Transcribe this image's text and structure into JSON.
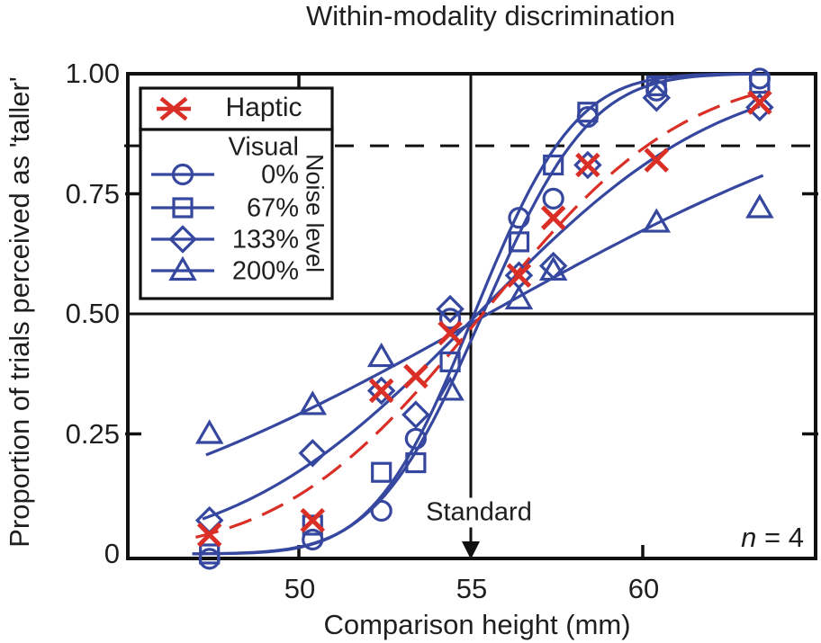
{
  "figure": {
    "standard_label": "Standard",
    "n_annotation": {
      "var": "n",
      "rest": " = 4"
    }
  },
  "colors": {
    "blue": "#35479e",
    "red": "#d92f27",
    "axis_black": "#111111",
    "text": "#1f1f1f"
  },
  "legend": {
    "haptic": {
      "label": "Haptic",
      "marker": "asterisk",
      "color": "#d92f27"
    },
    "visual": {
      "title": "Visual",
      "axis_label": "Noise level",
      "series": [
        {
          "label": "0%",
          "marker": "circle"
        },
        {
          "label": "67%",
          "marker": "square"
        },
        {
          "label": "133%",
          "marker": "diamond"
        },
        {
          "label": "200%",
          "marker": "triangle"
        }
      ]
    }
  },
  "chart_data": {
    "type": "scatter",
    "title": "Within-modality discrimination",
    "xlabel": "Comparison height (mm)",
    "ylabel": "Proportion of trials perceived as 'taller'",
    "xlim": [
      45.1,
      65.0
    ],
    "ylim": [
      0,
      1.0
    ],
    "grid": false,
    "x_ticks": [
      {
        "value": 50,
        "label": "50"
      },
      {
        "value": 55,
        "label": "55"
      },
      {
        "value": 60,
        "label": "60"
      }
    ],
    "y_ticks": [
      {
        "value": 1.0,
        "label": "1.00"
      },
      {
        "value": 0.75,
        "label": "0.75"
      },
      {
        "value": 0.5,
        "label": "0.50"
      },
      {
        "value": 0.25,
        "label": "0.25"
      },
      {
        "value": 0,
        "label": "0"
      }
    ],
    "reference_lines": {
      "horizontal_solid_y": 0.5,
      "horizontal_dashed_y": 0.85,
      "vertical_arrow_x": 55
    },
    "annotations": {
      "standard": {
        "label": "Standard",
        "x": 55
      },
      "n_label": {
        "var": "n",
        "rest": " = 4"
      }
    },
    "series": [
      {
        "name": "Haptic",
        "marker": "cross",
        "color": "#d92f27",
        "line": "dashed",
        "fit": {
          "type": "cumulative-gaussian",
          "mu": 55.35,
          "sigma": 4.6,
          "range": [
            47.0,
            63.7
          ]
        },
        "points": [
          [
            47.4,
            0.04
          ],
          [
            50.4,
            0.07
          ],
          [
            52.4,
            0.34
          ],
          [
            53.4,
            0.37
          ],
          [
            54.4,
            0.46
          ],
          [
            56.4,
            0.58
          ],
          [
            57.4,
            0.7
          ],
          [
            58.4,
            0.81
          ],
          [
            60.4,
            0.82
          ],
          [
            63.4,
            0.94
          ]
        ]
      },
      {
        "name": "Visual 0% noise",
        "marker": "circle",
        "color": "#35479e",
        "line": "solid",
        "fit": {
          "type": "cumulative-gaussian",
          "mu": 55.1,
          "sigma": 2.3,
          "range": [
            46.9,
            63.45
          ]
        },
        "points": [
          [
            47.4,
            -0.01
          ],
          [
            50.4,
            0.03
          ],
          [
            52.4,
            0.09
          ],
          [
            53.4,
            0.24
          ],
          [
            54.4,
            0.49
          ],
          [
            56.4,
            0.7
          ],
          [
            57.4,
            0.74
          ],
          [
            58.4,
            0.91
          ],
          [
            60.4,
            0.965
          ],
          [
            63.4,
            0.99
          ]
        ]
      },
      {
        "name": "Visual 67% noise",
        "marker": "square",
        "color": "#35479e",
        "line": "solid",
        "fit": {
          "type": "cumulative-gaussian",
          "mu": 55.35,
          "sigma": 2.45,
          "range": [
            46.9,
            63.45
          ]
        },
        "points": [
          [
            47.4,
            0.0
          ],
          [
            50.4,
            0.06
          ],
          [
            52.4,
            0.17
          ],
          [
            53.4,
            0.19
          ],
          [
            54.4,
            0.4
          ],
          [
            56.4,
            0.65
          ],
          [
            57.4,
            0.81
          ],
          [
            58.4,
            0.92
          ],
          [
            60.4,
            0.975
          ],
          [
            63.4,
            0.98
          ]
        ]
      },
      {
        "name": "Visual 133% noise",
        "marker": "diamond",
        "color": "#35479e",
        "line": "solid",
        "fit": {
          "type": "cumulative-gaussian",
          "mu": 55.2,
          "sigma": 5.5,
          "range": [
            47.2,
            63.45
          ]
        },
        "points": [
          [
            47.4,
            0.07
          ],
          [
            50.4,
            0.21
          ],
          [
            52.4,
            0.34
          ],
          [
            53.4,
            0.29
          ],
          [
            54.4,
            0.51
          ],
          [
            56.4,
            0.58
          ],
          [
            57.4,
            0.6
          ],
          [
            58.4,
            0.81
          ],
          [
            60.4,
            0.95
          ],
          [
            63.4,
            0.93
          ]
        ]
      },
      {
        "name": "Visual 200% noise",
        "marker": "triangle",
        "color": "#35479e",
        "line": "solid",
        "fit": {
          "type": "cumulative-gaussian",
          "mu": 55.5,
          "sigma": 10.0,
          "range": [
            47.3,
            63.6
          ]
        },
        "points": [
          [
            47.4,
            0.25
          ],
          [
            50.4,
            0.31
          ],
          [
            52.4,
            0.41
          ],
          [
            54.4,
            0.34
          ],
          [
            56.4,
            0.53
          ],
          [
            57.4,
            0.59
          ],
          [
            60.4,
            0.69
          ],
          [
            63.4,
            0.72
          ]
        ]
      }
    ]
  }
}
